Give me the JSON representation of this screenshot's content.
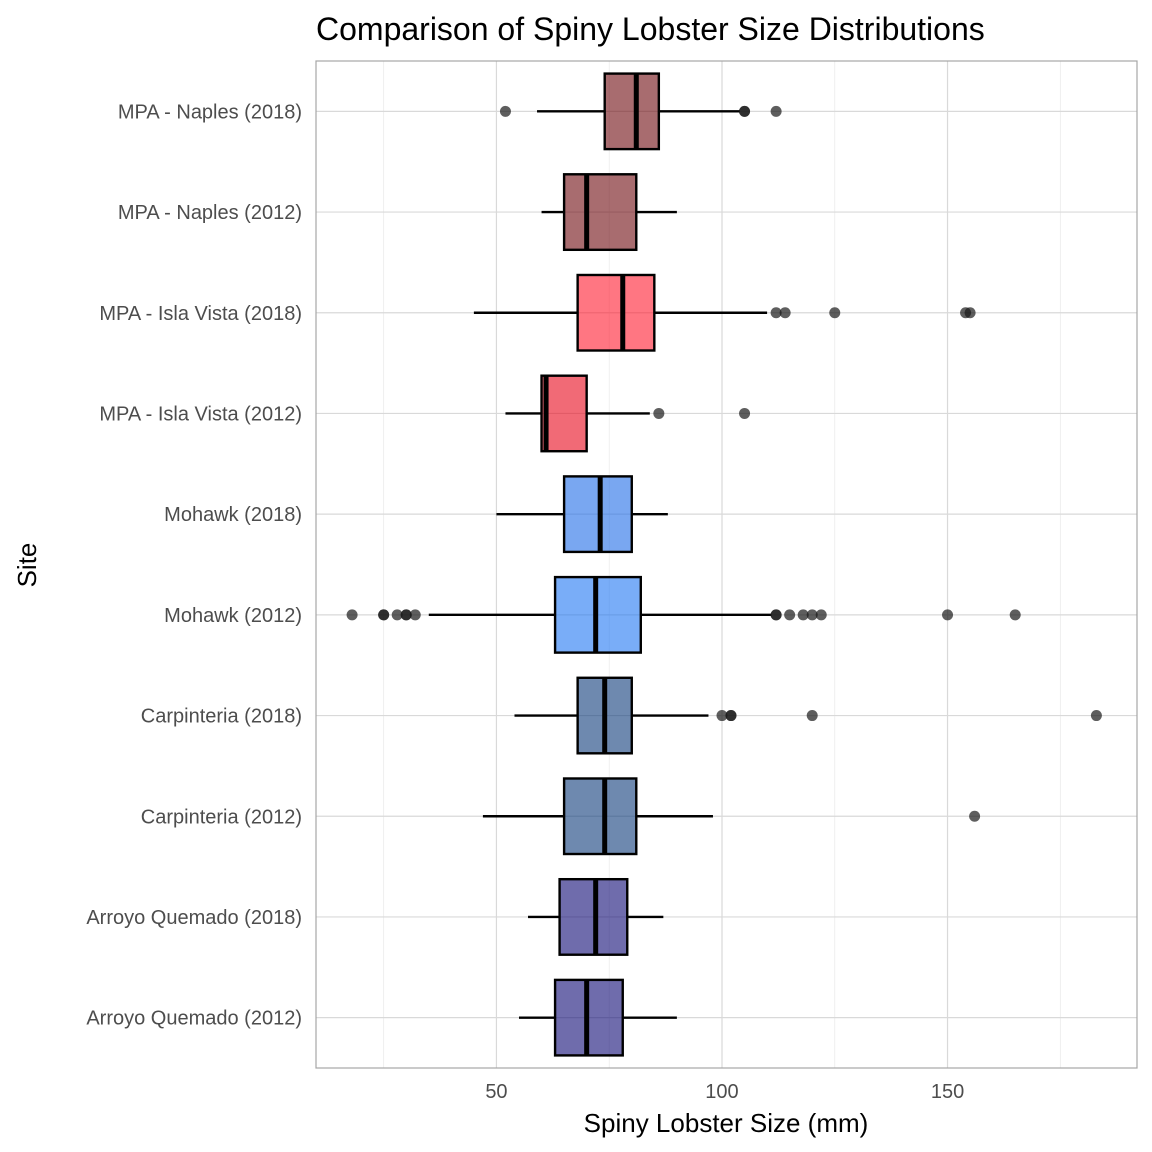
{
  "chart_data": {
    "type": "boxplot",
    "orientation": "horizontal",
    "title": "Comparison of Spiny Lobster Size Distributions",
    "xlabel": "Spiny Lobster Size (mm)",
    "ylabel": "Site",
    "xlim": [
      10,
      192
    ],
    "x_ticks": [
      50,
      100,
      150
    ],
    "grid": true,
    "legend": "none",
    "series": [
      {
        "label": "Arroyo Quemado (2012)",
        "color": "#0f0a74",
        "whisker_low": 55,
        "q1": 63,
        "median": 70,
        "q3": 78,
        "whisker_high": 90,
        "outliers": []
      },
      {
        "label": "Arroyo Quemado (2018)",
        "color": "#0f0a74",
        "whisker_low": 57,
        "q1": 64,
        "median": 72,
        "q3": 79,
        "whisker_high": 87,
        "outliers": []
      },
      {
        "label": "Carpinteria (2012)",
        "color": "#0e3b7a",
        "whisker_low": 47,
        "q1": 65,
        "median": 74,
        "q3": 81,
        "whisker_high": 98,
        "outliers": [
          156
        ]
      },
      {
        "label": "Carpinteria (2018)",
        "color": "#0e3b7a",
        "whisker_low": 54,
        "q1": 68,
        "median": 74,
        "q3": 80,
        "whisker_high": 97,
        "outliers": [
          100,
          102,
          102,
          120,
          183
        ]
      },
      {
        "label": "Mohawk (2012)",
        "color": "#1f77f4",
        "whisker_low": 35,
        "q1": 63,
        "median": 72,
        "q3": 82,
        "whisker_high": 111,
        "outliers": [
          18,
          25,
          25,
          28,
          30,
          30,
          32,
          112,
          112,
          115,
          118,
          120,
          122,
          150,
          165
        ]
      },
      {
        "label": "Mohawk (2018)",
        "color": "#1f6de8",
        "whisker_low": 50,
        "q1": 65,
        "median": 73,
        "q3": 80,
        "whisker_high": 88,
        "outliers": []
      },
      {
        "label": "MPA - Isla Vista (2012)",
        "color": "#e8071a",
        "whisker_low": 52,
        "q1": 60,
        "median": 61,
        "q3": 70,
        "whisker_high": 84,
        "outliers": [
          86,
          105
        ]
      },
      {
        "label": "MPA - Isla Vista (2018)",
        "color": "#ff1a2e",
        "whisker_low": 45,
        "q1": 68,
        "median": 78,
        "q3": 85,
        "whisker_high": 110,
        "outliers": [
          112,
          114,
          125,
          154,
          155
        ]
      },
      {
        "label": "MPA - Naples (2012)",
        "color": "#6e0a0f",
        "whisker_low": 60,
        "q1": 65,
        "median": 70,
        "q3": 81,
        "whisker_high": 90,
        "outliers": []
      },
      {
        "label": "MPA - Naples (2018)",
        "color": "#6e0a0f",
        "whisker_low": 59,
        "q1": 74,
        "median": 81,
        "q3": 86,
        "whisker_high": 104,
        "outliers": [
          52,
          105,
          105,
          112
        ]
      }
    ]
  }
}
